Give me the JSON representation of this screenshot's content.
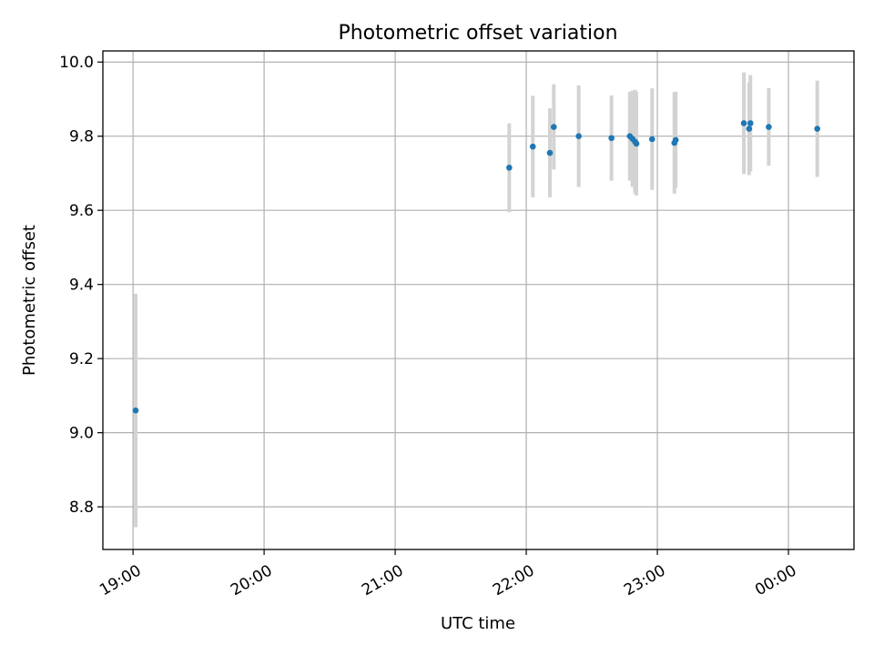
{
  "chart_data": {
    "type": "scatter",
    "title": "Photometric offset variation",
    "xlabel": "UTC time",
    "ylabel": "Photometric offset",
    "x_axis": "time (hours since 19:00 UTC; 24.0 = 00:00 next day)",
    "xlim": [
      18.77,
      24.5
    ],
    "ylim": [
      8.685,
      10.03
    ],
    "x_ticks": [
      {
        "value": 19.0,
        "label": "19:00"
      },
      {
        "value": 20.0,
        "label": "20:00"
      },
      {
        "value": 21.0,
        "label": "21:00"
      },
      {
        "value": 22.0,
        "label": "22:00"
      },
      {
        "value": 23.0,
        "label": "23:00"
      },
      {
        "value": 24.0,
        "label": "00:00"
      }
    ],
    "y_ticks": [
      {
        "value": 8.8,
        "label": "8.8"
      },
      {
        "value": 9.0,
        "label": "9.0"
      },
      {
        "value": 9.2,
        "label": "9.2"
      },
      {
        "value": 9.4,
        "label": "9.4"
      },
      {
        "value": 9.6,
        "label": "9.6"
      },
      {
        "value": 9.8,
        "label": "9.8"
      },
      {
        "value": 10.0,
        "label": "10.0"
      }
    ],
    "grid": true,
    "point_color": "#1f77b4",
    "errorbar_color": "#d3d3d3",
    "points": [
      {
        "t": "19:01",
        "x": 19.02,
        "y": 9.06,
        "err": 0.315
      },
      {
        "t": "21:52",
        "x": 21.87,
        "y": 9.715,
        "err": 0.12
      },
      {
        "t": "22:03",
        "x": 22.05,
        "y": 9.772,
        "err": 0.137
      },
      {
        "t": "22:11",
        "x": 22.18,
        "y": 9.755,
        "err": 0.12
      },
      {
        "t": "22:13",
        "x": 22.21,
        "y": 9.825,
        "err": 0.115
      },
      {
        "t": "22:24",
        "x": 22.4,
        "y": 9.8,
        "err": 0.137
      },
      {
        "t": "22:39",
        "x": 22.65,
        "y": 9.795,
        "err": 0.115
      },
      {
        "t": "22:48",
        "x": 22.79,
        "y": 9.8,
        "err": 0.12
      },
      {
        "t": "22:49",
        "x": 22.81,
        "y": 9.793,
        "err": 0.13
      },
      {
        "t": "22:50",
        "x": 22.83,
        "y": 9.785,
        "err": 0.14
      },
      {
        "t": "22:51",
        "x": 22.84,
        "y": 9.78,
        "err": 0.14
      },
      {
        "t": "22:58",
        "x": 22.96,
        "y": 9.792,
        "err": 0.137
      },
      {
        "t": "23:08",
        "x": 23.13,
        "y": 9.782,
        "err": 0.137
      },
      {
        "t": "23:09",
        "x": 23.14,
        "y": 9.79,
        "err": 0.13
      },
      {
        "t": "23:40",
        "x": 23.66,
        "y": 9.835,
        "err": 0.137
      },
      {
        "t": "23:42",
        "x": 23.7,
        "y": 9.82,
        "err": 0.125
      },
      {
        "t": "23:43",
        "x": 23.71,
        "y": 9.835,
        "err": 0.13
      },
      {
        "t": "23:51",
        "x": 23.85,
        "y": 9.825,
        "err": 0.105
      },
      {
        "t": "00:13",
        "x": 24.22,
        "y": 9.82,
        "err": 0.13
      }
    ]
  }
}
